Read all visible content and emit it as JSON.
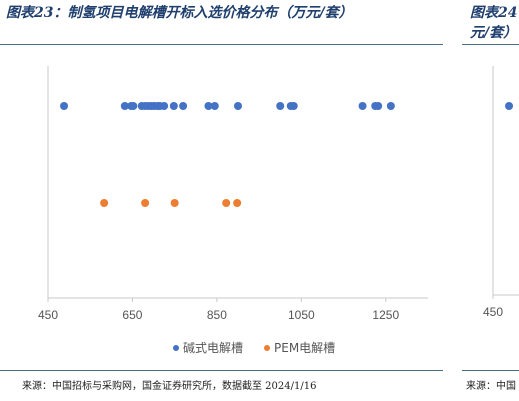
{
  "header": {
    "left_title": "图表23：制氢项目电解槽开标入选价格分布（万元/套）",
    "right_title_line1": "图表24",
    "right_title_line2": "元/套）"
  },
  "footer": {
    "left_source": "来源：中国招标与采购网，国金证券研究所，数据截至 2024/1/16",
    "right_source": "来源：中国"
  },
  "colors": {
    "alkaline": "#4472c4",
    "pem": "#ed7d31",
    "axis": "#c8c8c8",
    "rule": "#4a6f82",
    "title": "#1f3f6e"
  },
  "chart_data": [
    {
      "type": "scatter",
      "title": "图表23：制氢项目电解槽开标入选价格分布（万元/套）",
      "xlim": [
        450,
        1350
      ],
      "x_ticks": [
        450,
        650,
        850,
        1050,
        1250
      ],
      "grid": false,
      "legend_position": "bottom",
      "series": [
        {
          "name": "碱式电解槽",
          "color": "#4472c4",
          "row": 1,
          "x": [
            488,
            632,
            647,
            652,
            672,
            680,
            688,
            695,
            702,
            710,
            715,
            725,
            748,
            770,
            830,
            845,
            900,
            1000,
            1025,
            1032,
            1195,
            1225,
            1232,
            1262
          ]
        },
        {
          "name": "PEM电解槽",
          "color": "#ed7d31",
          "row": 2,
          "x": [
            583,
            680,
            750,
            872,
            898
          ]
        }
      ]
    },
    {
      "type": "scatter",
      "title": "图表24",
      "xlim": [
        450,
        1350
      ],
      "x_ticks": [
        450
      ],
      "series": [
        {
          "name": "碱式电解槽",
          "color": "#4472c4",
          "row": 1,
          "x": [
            488
          ]
        }
      ]
    }
  ]
}
